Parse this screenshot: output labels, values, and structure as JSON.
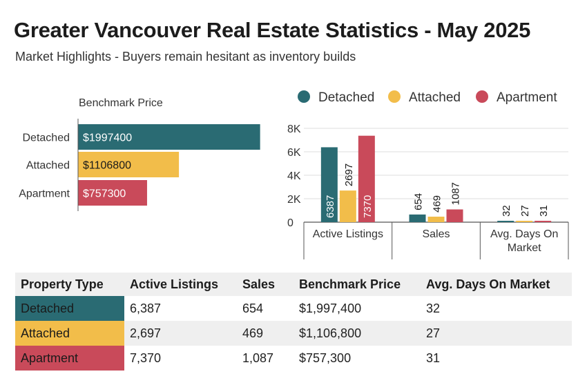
{
  "title": "Greater Vancouver Real Estate Statistics - May 2025",
  "subtitle": "Market Highlights - Buyers remain hesitant as inventory builds",
  "colors": {
    "detached": "#2a6b73",
    "attached": "#f2bd4a",
    "apartment": "#c94a5a",
    "grid": "#dddddd",
    "axis": "#555555"
  },
  "chart_data": [
    {
      "type": "bar",
      "orientation": "horizontal",
      "title": "Benchmark Price",
      "categories": [
        "Detached",
        "Attached",
        "Apartment"
      ],
      "values": [
        1997400,
        1106800,
        757300
      ],
      "labels": [
        "$1997400",
        "$1106800",
        "$757300"
      ],
      "xlim": [
        0,
        2000000
      ]
    },
    {
      "type": "bar",
      "orientation": "vertical",
      "categories": [
        "Active Listings",
        "Sales",
        "Avg. Days On Market"
      ],
      "series": [
        {
          "name": "Detached",
          "values": [
            6387,
            654,
            32
          ]
        },
        {
          "name": "Attached",
          "values": [
            2697,
            469,
            27
          ]
        },
        {
          "name": "Apartment",
          "values": [
            7370,
            1087,
            31
          ]
        }
      ],
      "yticks": [
        "0",
        "2K",
        "4K",
        "6K",
        "8K"
      ],
      "ylim": [
        0,
        8000
      ],
      "legend": "top"
    }
  ],
  "table": {
    "headers": [
      "Property Type",
      "Active Listings",
      "Sales",
      "Benchmark Price",
      "Avg. Days On Market"
    ],
    "rows": [
      [
        "Detached",
        "6,387",
        "654",
        "$1,997,400",
        "32"
      ],
      [
        "Attached",
        "2,697",
        "469",
        "$1,106,800",
        "27"
      ],
      [
        "Apartment",
        "7,370",
        "1,087",
        "$757,300",
        "31"
      ]
    ]
  }
}
